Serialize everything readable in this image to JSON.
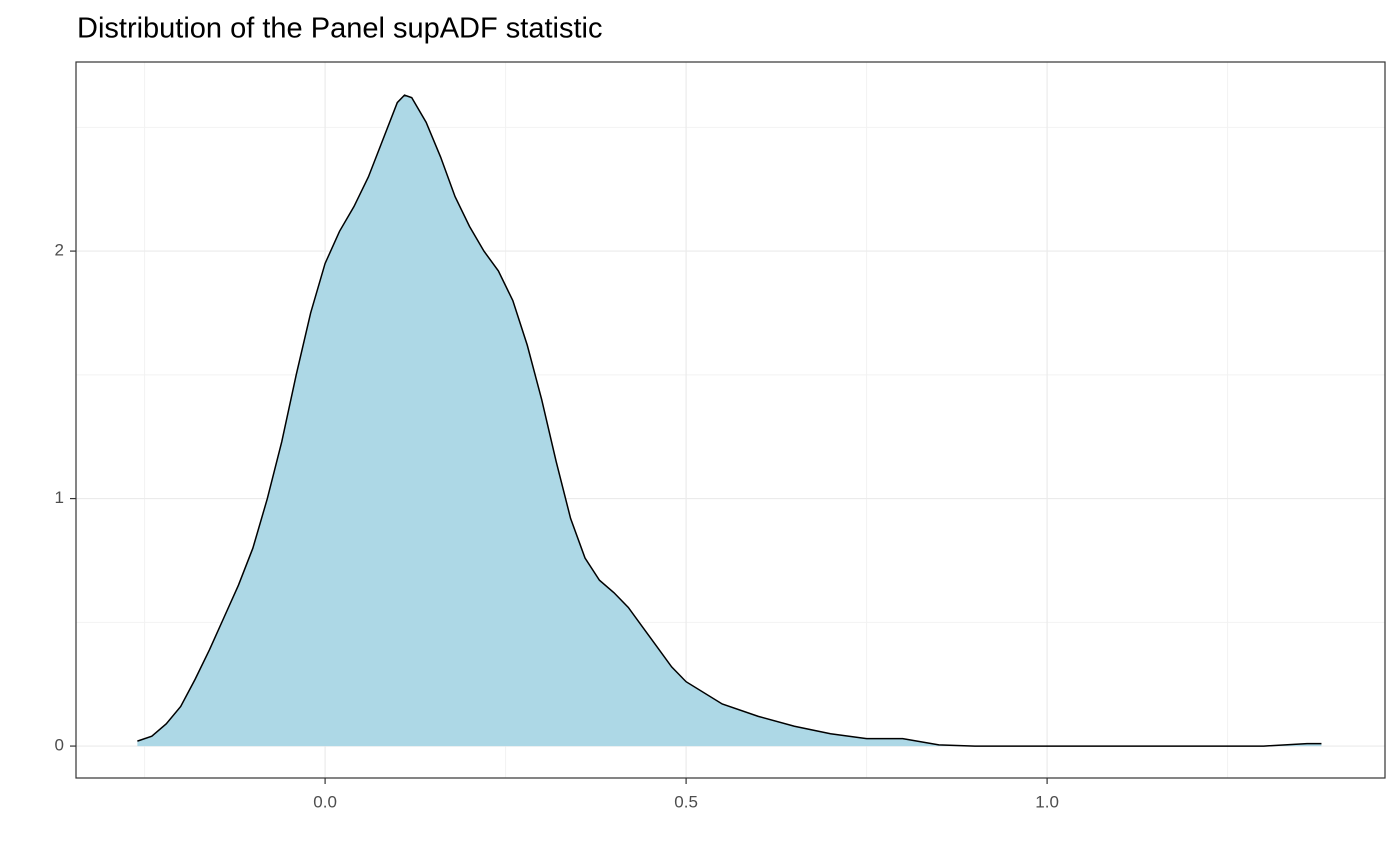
{
  "chart_data": {
    "type": "area",
    "title": "Distribution of the Panel supADF statistic",
    "x": [
      -0.26,
      -0.24,
      -0.22,
      -0.2,
      -0.18,
      -0.16,
      -0.14,
      -0.12,
      -0.1,
      -0.08,
      -0.06,
      -0.04,
      -0.02,
      0.0,
      0.02,
      0.04,
      0.06,
      0.08,
      0.1,
      0.11,
      0.12,
      0.14,
      0.16,
      0.18,
      0.2,
      0.22,
      0.24,
      0.26,
      0.28,
      0.3,
      0.32,
      0.34,
      0.36,
      0.38,
      0.4,
      0.42,
      0.44,
      0.46,
      0.48,
      0.5,
      0.55,
      0.6,
      0.65,
      0.7,
      0.75,
      0.8,
      0.85,
      0.9,
      1.0,
      1.2,
      1.3,
      1.36,
      1.38
    ],
    "values": [
      0.02,
      0.04,
      0.09,
      0.16,
      0.27,
      0.39,
      0.52,
      0.65,
      0.8,
      1.0,
      1.23,
      1.5,
      1.75,
      1.95,
      2.08,
      2.18,
      2.3,
      2.45,
      2.6,
      2.63,
      2.62,
      2.52,
      2.38,
      2.22,
      2.1,
      2.0,
      1.92,
      1.8,
      1.62,
      1.4,
      1.15,
      0.92,
      0.76,
      0.67,
      0.62,
      0.56,
      0.48,
      0.4,
      0.32,
      0.26,
      0.17,
      0.12,
      0.08,
      0.05,
      0.03,
      0.03,
      0.005,
      0.0,
      0.0,
      0.0,
      0.0,
      0.01,
      0.01
    ],
    "color": "#add8e6",
    "line_color": "#000000",
    "xlim": [
      -0.345,
      1.468
    ],
    "ylim": [
      -0.129,
      2.764
    ],
    "xticks": [
      {
        "value": 0,
        "label": "0.0"
      },
      0.5,
      {
        "value": 1,
        "label": "1.0"
      }
    ],
    "yticks": [
      0,
      1,
      2
    ],
    "grid": true,
    "minor_grid": true
  }
}
